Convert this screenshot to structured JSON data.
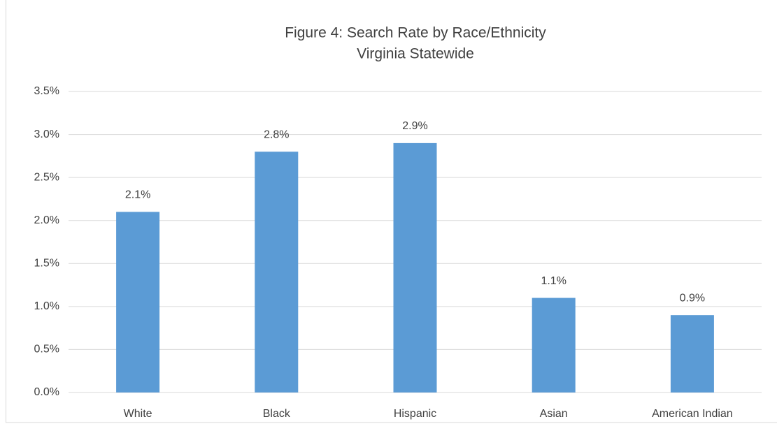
{
  "chart_data": {
    "type": "bar",
    "title": "Figure 4: Search Rate by Race/Ethnicity",
    "subtitle": "Virginia Statewide",
    "categories": [
      "White",
      "Black",
      "Hispanic",
      "Asian",
      "American Indian"
    ],
    "values": [
      2.1,
      2.8,
      2.9,
      1.1,
      0.9
    ],
    "value_labels": [
      "2.1%",
      "2.8%",
      "2.9%",
      "1.1%",
      "0.9%"
    ],
    "color": "#5b9bd5",
    "ylim": [
      0,
      3.5
    ],
    "yticks": [
      {
        "value": 0,
        "label": "0.0%"
      },
      {
        "value": 0.5,
        "label": "0.5%"
      },
      {
        "value": 1,
        "label": "1.0%"
      },
      {
        "value": 1.5,
        "label": "1.5%"
      },
      {
        "value": 2,
        "label": "2.0%"
      },
      {
        "value": 2.5,
        "label": "2.5%"
      },
      {
        "value": 3,
        "label": "3.0%"
      },
      {
        "value": 3.5,
        "label": "3.5%"
      }
    ],
    "grid": true
  }
}
